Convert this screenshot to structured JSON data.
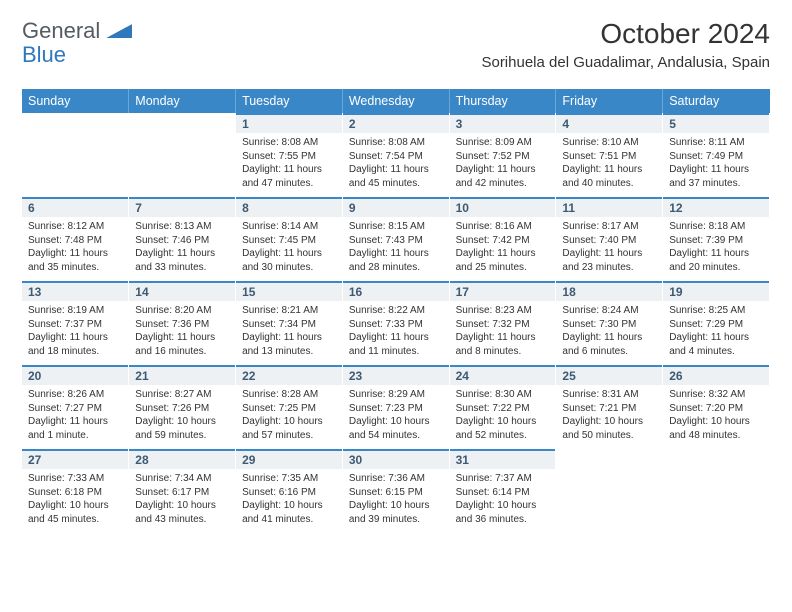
{
  "brand": {
    "line1": "General",
    "line2": "Blue",
    "accent_color": "#2f78bc"
  },
  "title": "October 2024",
  "location": "Sorihuela del Guadalimar, Andalusia, Spain",
  "header_bg": "#3a87c8",
  "day_headers": [
    "Sunday",
    "Monday",
    "Tuesday",
    "Wednesday",
    "Thursday",
    "Friday",
    "Saturday"
  ],
  "calendar": {
    "type": "table",
    "columns": 7,
    "rows": 5,
    "row_border_color": "#3a87c8",
    "daynum_bg": "#eef1f4",
    "text_color": "#333333",
    "fontsize_body": 10,
    "fontsize_daynum": 12
  },
  "weeks": [
    [
      {
        "n": "",
        "sr": "",
        "ss": "",
        "dl": ""
      },
      {
        "n": "",
        "sr": "",
        "ss": "",
        "dl": ""
      },
      {
        "n": "1",
        "sr": "Sunrise: 8:08 AM",
        "ss": "Sunset: 7:55 PM",
        "dl": "Daylight: 11 hours and 47 minutes."
      },
      {
        "n": "2",
        "sr": "Sunrise: 8:08 AM",
        "ss": "Sunset: 7:54 PM",
        "dl": "Daylight: 11 hours and 45 minutes."
      },
      {
        "n": "3",
        "sr": "Sunrise: 8:09 AM",
        "ss": "Sunset: 7:52 PM",
        "dl": "Daylight: 11 hours and 42 minutes."
      },
      {
        "n": "4",
        "sr": "Sunrise: 8:10 AM",
        "ss": "Sunset: 7:51 PM",
        "dl": "Daylight: 11 hours and 40 minutes."
      },
      {
        "n": "5",
        "sr": "Sunrise: 8:11 AM",
        "ss": "Sunset: 7:49 PM",
        "dl": "Daylight: 11 hours and 37 minutes."
      }
    ],
    [
      {
        "n": "6",
        "sr": "Sunrise: 8:12 AM",
        "ss": "Sunset: 7:48 PM",
        "dl": "Daylight: 11 hours and 35 minutes."
      },
      {
        "n": "7",
        "sr": "Sunrise: 8:13 AM",
        "ss": "Sunset: 7:46 PM",
        "dl": "Daylight: 11 hours and 33 minutes."
      },
      {
        "n": "8",
        "sr": "Sunrise: 8:14 AM",
        "ss": "Sunset: 7:45 PM",
        "dl": "Daylight: 11 hours and 30 minutes."
      },
      {
        "n": "9",
        "sr": "Sunrise: 8:15 AM",
        "ss": "Sunset: 7:43 PM",
        "dl": "Daylight: 11 hours and 28 minutes."
      },
      {
        "n": "10",
        "sr": "Sunrise: 8:16 AM",
        "ss": "Sunset: 7:42 PM",
        "dl": "Daylight: 11 hours and 25 minutes."
      },
      {
        "n": "11",
        "sr": "Sunrise: 8:17 AM",
        "ss": "Sunset: 7:40 PM",
        "dl": "Daylight: 11 hours and 23 minutes."
      },
      {
        "n": "12",
        "sr": "Sunrise: 8:18 AM",
        "ss": "Sunset: 7:39 PM",
        "dl": "Daylight: 11 hours and 20 minutes."
      }
    ],
    [
      {
        "n": "13",
        "sr": "Sunrise: 8:19 AM",
        "ss": "Sunset: 7:37 PM",
        "dl": "Daylight: 11 hours and 18 minutes."
      },
      {
        "n": "14",
        "sr": "Sunrise: 8:20 AM",
        "ss": "Sunset: 7:36 PM",
        "dl": "Daylight: 11 hours and 16 minutes."
      },
      {
        "n": "15",
        "sr": "Sunrise: 8:21 AM",
        "ss": "Sunset: 7:34 PM",
        "dl": "Daylight: 11 hours and 13 minutes."
      },
      {
        "n": "16",
        "sr": "Sunrise: 8:22 AM",
        "ss": "Sunset: 7:33 PM",
        "dl": "Daylight: 11 hours and 11 minutes."
      },
      {
        "n": "17",
        "sr": "Sunrise: 8:23 AM",
        "ss": "Sunset: 7:32 PM",
        "dl": "Daylight: 11 hours and 8 minutes."
      },
      {
        "n": "18",
        "sr": "Sunrise: 8:24 AM",
        "ss": "Sunset: 7:30 PM",
        "dl": "Daylight: 11 hours and 6 minutes."
      },
      {
        "n": "19",
        "sr": "Sunrise: 8:25 AM",
        "ss": "Sunset: 7:29 PM",
        "dl": "Daylight: 11 hours and 4 minutes."
      }
    ],
    [
      {
        "n": "20",
        "sr": "Sunrise: 8:26 AM",
        "ss": "Sunset: 7:27 PM",
        "dl": "Daylight: 11 hours and 1 minute."
      },
      {
        "n": "21",
        "sr": "Sunrise: 8:27 AM",
        "ss": "Sunset: 7:26 PM",
        "dl": "Daylight: 10 hours and 59 minutes."
      },
      {
        "n": "22",
        "sr": "Sunrise: 8:28 AM",
        "ss": "Sunset: 7:25 PM",
        "dl": "Daylight: 10 hours and 57 minutes."
      },
      {
        "n": "23",
        "sr": "Sunrise: 8:29 AM",
        "ss": "Sunset: 7:23 PM",
        "dl": "Daylight: 10 hours and 54 minutes."
      },
      {
        "n": "24",
        "sr": "Sunrise: 8:30 AM",
        "ss": "Sunset: 7:22 PM",
        "dl": "Daylight: 10 hours and 52 minutes."
      },
      {
        "n": "25",
        "sr": "Sunrise: 8:31 AM",
        "ss": "Sunset: 7:21 PM",
        "dl": "Daylight: 10 hours and 50 minutes."
      },
      {
        "n": "26",
        "sr": "Sunrise: 8:32 AM",
        "ss": "Sunset: 7:20 PM",
        "dl": "Daylight: 10 hours and 48 minutes."
      }
    ],
    [
      {
        "n": "27",
        "sr": "Sunrise: 7:33 AM",
        "ss": "Sunset: 6:18 PM",
        "dl": "Daylight: 10 hours and 45 minutes."
      },
      {
        "n": "28",
        "sr": "Sunrise: 7:34 AM",
        "ss": "Sunset: 6:17 PM",
        "dl": "Daylight: 10 hours and 43 minutes."
      },
      {
        "n": "29",
        "sr": "Sunrise: 7:35 AM",
        "ss": "Sunset: 6:16 PM",
        "dl": "Daylight: 10 hours and 41 minutes."
      },
      {
        "n": "30",
        "sr": "Sunrise: 7:36 AM",
        "ss": "Sunset: 6:15 PM",
        "dl": "Daylight: 10 hours and 39 minutes."
      },
      {
        "n": "31",
        "sr": "Sunrise: 7:37 AM",
        "ss": "Sunset: 6:14 PM",
        "dl": "Daylight: 10 hours and 36 minutes."
      },
      {
        "n": "",
        "sr": "",
        "ss": "",
        "dl": ""
      },
      {
        "n": "",
        "sr": "",
        "ss": "",
        "dl": ""
      }
    ]
  ]
}
